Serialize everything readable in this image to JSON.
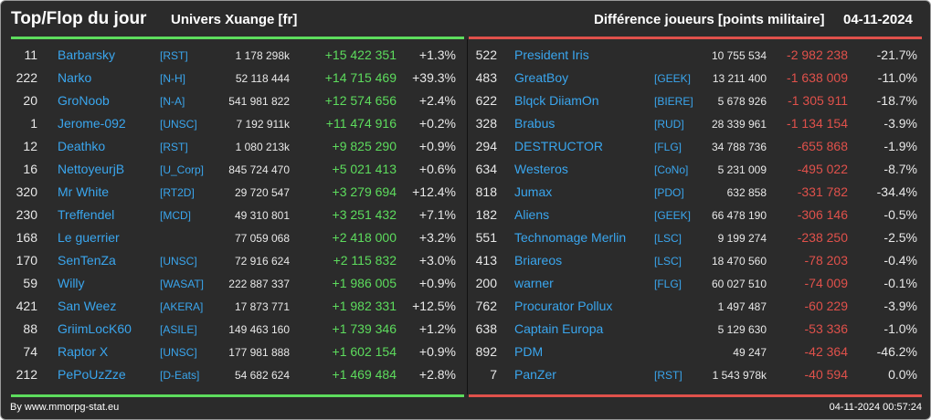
{
  "header": {
    "title": "Top/Flop du jour",
    "universe": "Univers Xuange [fr]",
    "subtitle": "Différence joueurs [points militaire]",
    "date": "04-11-2024"
  },
  "colors": {
    "positive": "#5ddc5d",
    "negative": "#e0514b",
    "name": "#3aa6ee",
    "background": "#2b2b2b"
  },
  "top": [
    {
      "rank": "11",
      "name": "Barbarsky",
      "ally": "[RST]",
      "points": "1 178 298k",
      "diff": "+15 422 351",
      "pct": "+1.3%"
    },
    {
      "rank": "222",
      "name": "Narko",
      "ally": "[N-H]",
      "points": "52 118 444",
      "diff": "+14 715 469",
      "pct": "+39.3%"
    },
    {
      "rank": "20",
      "name": "GroNoob",
      "ally": "[N-A]",
      "points": "541 981 822",
      "diff": "+12 574 656",
      "pct": "+2.4%"
    },
    {
      "rank": "1",
      "name": "Jerome-092",
      "ally": "[UNSC]",
      "points": "7 192 911k",
      "diff": "+11 474 916",
      "pct": "+0.2%"
    },
    {
      "rank": "12",
      "name": "Deathko",
      "ally": "[RST]",
      "points": "1 080 213k",
      "diff": "+9 825 290",
      "pct": "+0.9%"
    },
    {
      "rank": "16",
      "name": "NettoyeurjB",
      "ally": "[U_Corp]",
      "points": "845 724 470",
      "diff": "+5 021 413",
      "pct": "+0.6%"
    },
    {
      "rank": "320",
      "name": "Mr White",
      "ally": "[RT2D]",
      "points": "29 720 547",
      "diff": "+3 279 694",
      "pct": "+12.4%"
    },
    {
      "rank": "230",
      "name": "Treffendel",
      "ally": "[MCD]",
      "points": "49 310 801",
      "diff": "+3 251 432",
      "pct": "+7.1%"
    },
    {
      "rank": "168",
      "name": "Le guerrier",
      "ally": "",
      "points": "77 059 068",
      "diff": "+2 418 000",
      "pct": "+3.2%"
    },
    {
      "rank": "170",
      "name": "SenTenZa",
      "ally": "[UNSC]",
      "points": "72 916 624",
      "diff": "+2 115 832",
      "pct": "+3.0%"
    },
    {
      "rank": "59",
      "name": "Willy",
      "ally": "[WASAT]",
      "points": "222 887 337",
      "diff": "+1 986 005",
      "pct": "+0.9%"
    },
    {
      "rank": "421",
      "name": "San Weez",
      "ally": "[AKERA]",
      "points": "17 873 771",
      "diff": "+1 982 331",
      "pct": "+12.5%"
    },
    {
      "rank": "88",
      "name": "GriimLocK60",
      "ally": "[ASILE]",
      "points": "149 463 160",
      "diff": "+1 739 346",
      "pct": "+1.2%"
    },
    {
      "rank": "74",
      "name": "Raptor X",
      "ally": "[UNSC]",
      "points": "177 981 888",
      "diff": "+1 602 154",
      "pct": "+0.9%"
    },
    {
      "rank": "212",
      "name": "PePoUzZze",
      "ally": "[D-Eats]",
      "points": "54 682 624",
      "diff": "+1 469 484",
      "pct": "+2.8%"
    }
  ],
  "flop": [
    {
      "rank": "522",
      "name": "President Iris",
      "ally": "",
      "points": "10 755 534",
      "diff": "-2 982 238",
      "pct": "-21.7%"
    },
    {
      "rank": "483",
      "name": "GreatBoy",
      "ally": "[GEEK]",
      "points": "13 211 400",
      "diff": "-1 638 009",
      "pct": "-11.0%"
    },
    {
      "rank": "622",
      "name": "Blqck DiiamOn",
      "ally": "[BIERE]",
      "points": "5 678 926",
      "diff": "-1 305 911",
      "pct": "-18.7%"
    },
    {
      "rank": "328",
      "name": "Brabus",
      "ally": "[RUD]",
      "points": "28 339 961",
      "diff": "-1 134 154",
      "pct": "-3.9%"
    },
    {
      "rank": "294",
      "name": "DESTRUCTOR",
      "ally": "[FLG]",
      "points": "34 788 736",
      "diff": "-655 868",
      "pct": "-1.9%"
    },
    {
      "rank": "634",
      "name": "Westeros",
      "ally": "[CoNo]",
      "points": "5 231 009",
      "diff": "-495 022",
      "pct": "-8.7%"
    },
    {
      "rank": "818",
      "name": "Jumax",
      "ally": "[PDO]",
      "points": "632 858",
      "diff": "-331 782",
      "pct": "-34.4%"
    },
    {
      "rank": "182",
      "name": "Aliens",
      "ally": "[GEEK]",
      "points": "66 478 190",
      "diff": "-306 146",
      "pct": "-0.5%"
    },
    {
      "rank": "551",
      "name": "Technomage Merlin",
      "ally": "[LSC]",
      "points": "9 199 274",
      "diff": "-238 250",
      "pct": "-2.5%"
    },
    {
      "rank": "413",
      "name": "Briareos",
      "ally": "[LSC]",
      "points": "18 470 560",
      "diff": "-78 203",
      "pct": "-0.4%"
    },
    {
      "rank": "200",
      "name": "warner",
      "ally": "[FLG]",
      "points": "60 027 510",
      "diff": "-74 009",
      "pct": "-0.1%"
    },
    {
      "rank": "762",
      "name": "Procurator Pollux",
      "ally": "",
      "points": "1 497 487",
      "diff": "-60 229",
      "pct": "-3.9%"
    },
    {
      "rank": "638",
      "name": "Captain Europa",
      "ally": "",
      "points": "5 129 630",
      "diff": "-53 336",
      "pct": "-1.0%"
    },
    {
      "rank": "892",
      "name": "PDM",
      "ally": "",
      "points": "49 247",
      "diff": "-42 364",
      "pct": "-46.2%"
    },
    {
      "rank": "7",
      "name": "PanZer",
      "ally": "[RST]",
      "points": "1 543 978k",
      "diff": "-40 594",
      "pct": "0.0%"
    }
  ],
  "footer": {
    "credit": "By www.mmorpg-stat.eu",
    "timestamp": "04-11-2024 00:57:24"
  }
}
